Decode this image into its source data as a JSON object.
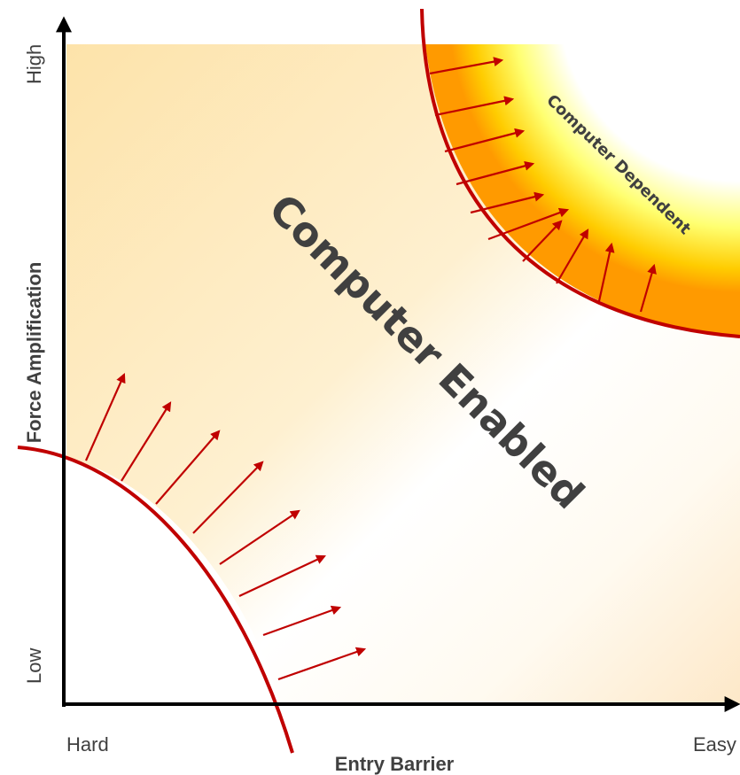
{
  "title": "",
  "axes": {
    "x_label": "Entry Barrier",
    "x_low": "Hard",
    "x_high": "Easy",
    "y_label": "Force Amplification",
    "y_low": "Low",
    "y_high": "High"
  },
  "regions": {
    "enabled": "Computer Enabled",
    "dependent": "Computer Dependent"
  },
  "colors": {
    "axis": "#000000",
    "curve": "#c00000",
    "text": "#404040",
    "enabled_gradient": [
      "#fde8b8",
      "#ffffff"
    ],
    "dependent_gradient": [
      "#ffa200",
      "#ffff66",
      "#ffffff"
    ]
  }
}
